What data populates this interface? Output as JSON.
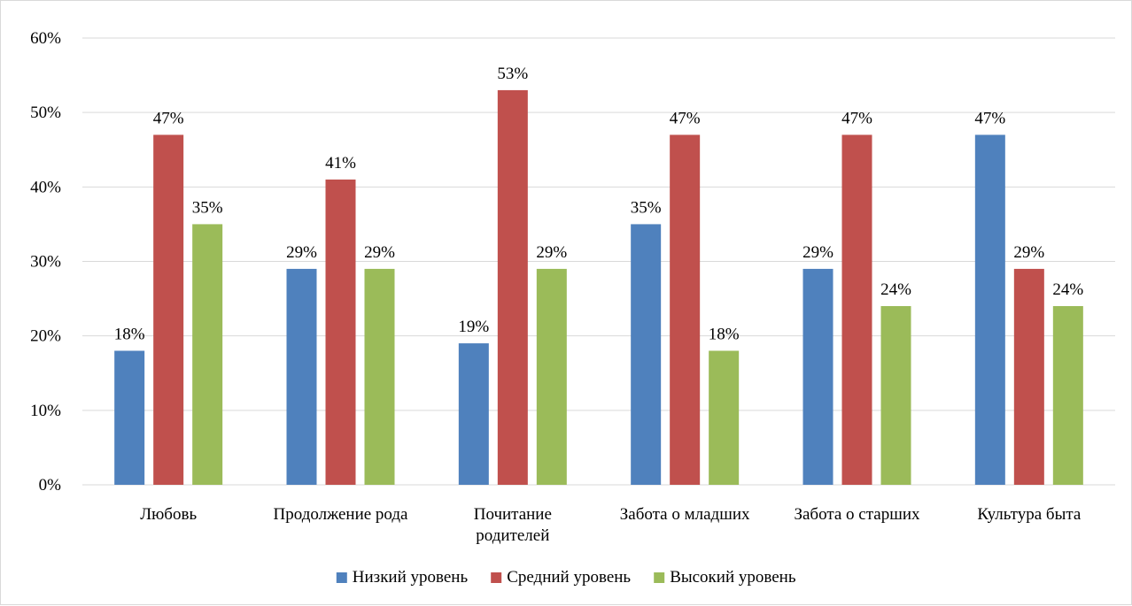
{
  "chart_data": {
    "type": "bar",
    "title": "",
    "xlabel": "",
    "ylabel": "",
    "ylim": [
      0,
      60
    ],
    "y_ticks": [
      "0%",
      "10%",
      "20%",
      "30%",
      "40%",
      "50%",
      "60%"
    ],
    "grid": true,
    "legend_position": "bottom",
    "categories": [
      [
        "Любовь"
      ],
      [
        "Продолжение рода"
      ],
      [
        "Почитание",
        "родителей"
      ],
      [
        "Забота о младших"
      ],
      [
        "Забота о старших"
      ],
      [
        "Культура быта"
      ]
    ],
    "series": [
      {
        "name": "Низкий уровень",
        "color": "#4F81BD",
        "values": [
          18,
          29,
          19,
          35,
          29,
          47
        ],
        "labels": [
          "18%",
          "29%",
          "19%",
          "35%",
          "29%",
          "47%"
        ]
      },
      {
        "name": "Средний уровень",
        "color": "#C0504D",
        "values": [
          47,
          41,
          53,
          47,
          47,
          29
        ],
        "labels": [
          "47%",
          "41%",
          "53%",
          "47%",
          "47%",
          "29%"
        ]
      },
      {
        "name": "Высокий уровень",
        "color": "#9BBB59",
        "values": [
          35,
          29,
          29,
          18,
          24,
          24
        ],
        "labels": [
          "35%",
          "29%",
          "29%",
          "18%",
          "24%",
          "24%"
        ]
      }
    ]
  }
}
